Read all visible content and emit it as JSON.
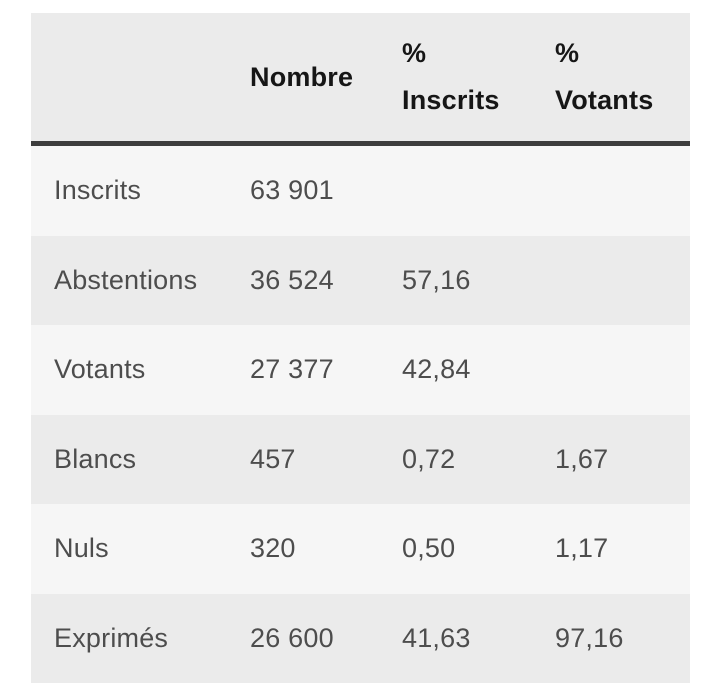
{
  "table": {
    "headers": {
      "nombre": "Nombre",
      "pct_inscrits": {
        "line1": "%",
        "line2": "Inscrits"
      },
      "pct_votants": {
        "line1": "%",
        "line2": "Votants"
      }
    },
    "rows": [
      {
        "label": "Inscrits",
        "nombre": "63 901",
        "pct_inscrits": "",
        "pct_votants": ""
      },
      {
        "label": "Abstentions",
        "nombre": "36 524",
        "pct_inscrits": "57,16",
        "pct_votants": ""
      },
      {
        "label": "Votants",
        "nombre": "27 377",
        "pct_inscrits": "42,84",
        "pct_votants": ""
      },
      {
        "label": "Blancs",
        "nombre": "457",
        "pct_inscrits": "0,72",
        "pct_votants": "1,67"
      },
      {
        "label": "Nuls",
        "nombre": "320",
        "pct_inscrits": "0,50",
        "pct_votants": "1,17"
      },
      {
        "label": "Exprimés",
        "nombre": "26 600",
        "pct_inscrits": "41,63",
        "pct_votants": "97,16"
      }
    ]
  },
  "colors": {
    "page_bg": "#ffffff",
    "header_bg": "#ebebeb",
    "row_odd_bg": "#f6f6f6",
    "row_even_bg": "#ebebeb",
    "header_rule": "#3d3d3d",
    "header_text": "#161616",
    "body_text": "#4d4d4d"
  },
  "chart_data": {
    "type": "table",
    "columns": [
      "",
      "Nombre",
      "% Inscrits",
      "% Votants"
    ],
    "rows": [
      [
        "Inscrits",
        "63 901",
        "",
        ""
      ],
      [
        "Abstentions",
        "36 524",
        "57,16",
        ""
      ],
      [
        "Votants",
        "27 377",
        "42,84",
        ""
      ],
      [
        "Blancs",
        "457",
        "0,72",
        "1,67"
      ],
      [
        "Nuls",
        "320",
        "0,50",
        "1,17"
      ],
      [
        "Exprimés",
        "26 600",
        "41,63",
        "97,16"
      ]
    ],
    "values_numeric": [
      {
        "label": "Inscrits",
        "nombre": 63901
      },
      {
        "label": "Abstentions",
        "nombre": 36524,
        "pct_inscrits": 57.16
      },
      {
        "label": "Votants",
        "nombre": 27377,
        "pct_inscrits": 42.84
      },
      {
        "label": "Blancs",
        "nombre": 457,
        "pct_inscrits": 0.72,
        "pct_votants": 1.67
      },
      {
        "label": "Nuls",
        "nombre": 320,
        "pct_inscrits": 0.5,
        "pct_votants": 1.17
      },
      {
        "label": "Exprimés",
        "nombre": 26600,
        "pct_inscrits": 41.63,
        "pct_votants": 97.16
      }
    ]
  }
}
